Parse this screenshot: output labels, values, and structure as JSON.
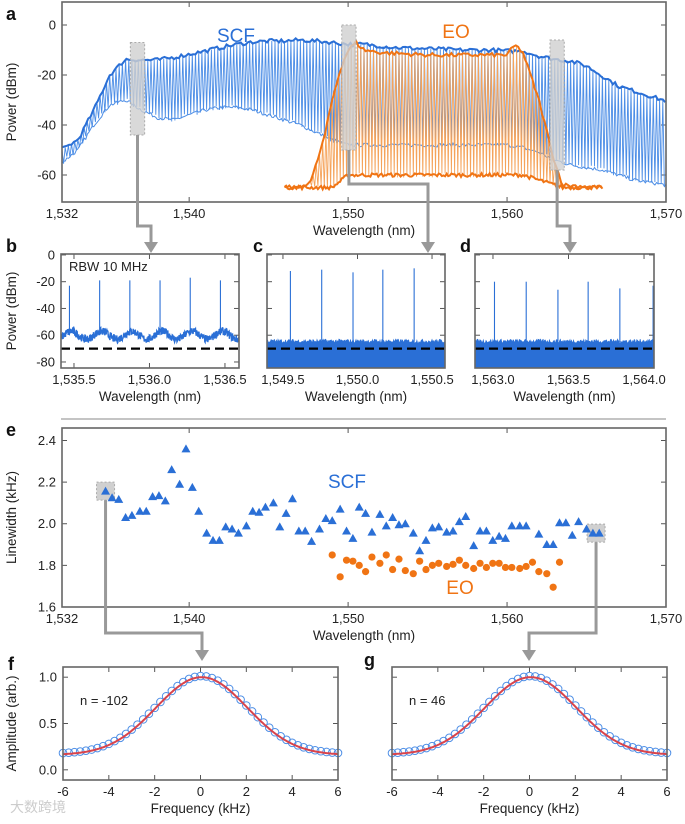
{
  "watermark": "大数跨境",
  "colors": {
    "scf": "#2a6fd6",
    "scf_light": "#4d8ee6",
    "eo": "#f07414",
    "eo_light": "#f5a35a",
    "fit": "#d9434b",
    "highlight": "#d0d0d0",
    "arrow": "#999999"
  },
  "chart_data": [
    {
      "panel": "a",
      "type": "line",
      "xlabel": "Wavelength (nm)",
      "ylabel": "Power (dBm)",
      "xlim": [
        1532,
        1570
      ],
      "ylim": [
        -70.8,
        9.2
      ],
      "xticks": [
        1532,
        1540,
        1550,
        1560,
        1570
      ],
      "xtick_labels": [
        "1,532",
        "1,540",
        "1,550",
        "1,560",
        "1,570"
      ],
      "yticks": [
        0,
        -20,
        -40,
        -60
      ],
      "ytick_labels": [
        "0",
        "-20",
        "-40",
        "-60"
      ],
      "series": [
        {
          "name": "SCF",
          "comb_spacing_nm": 0.2,
          "upper": {
            "x": [
              1532,
              1533,
              1534,
              1535,
              1536,
              1537,
              1538,
              1539,
              1540,
              1541,
              1542,
              1543,
              1544,
              1545,
              1546,
              1547,
              1548,
              1549,
              1550,
              1551,
              1552,
              1553,
              1554,
              1555,
              1556,
              1557,
              1558,
              1559,
              1560,
              1561,
              1562,
              1563,
              1564,
              1565,
              1566,
              1567,
              1568,
              1569,
              1570
            ],
            "y": [
              -49.7,
              -46,
              -34,
              -20,
              -13.7,
              -14,
              -14,
              -13,
              -11.7,
              -10.4,
              -9,
              -7.7,
              -6.8,
              -6.4,
              -6.4,
              -6,
              -6.4,
              -7,
              -7.7,
              -7.7,
              -8.4,
              -9,
              -9.3,
              -9.5,
              -9.7,
              -10,
              -10,
              -10,
              -10.4,
              -10.4,
              -12.4,
              -13.7,
              -14.4,
              -16.4,
              -20.4,
              -24.4,
              -26.4,
              -28.4,
              -30.4
            ]
          },
          "lower": {
            "x": [
              1532,
              1533,
              1534,
              1535,
              1536,
              1537,
              1538,
              1539,
              1540,
              1541,
              1542,
              1543,
              1544,
              1545,
              1546,
              1547,
              1548,
              1549,
              1550,
              1551,
              1560,
              1561,
              1562,
              1563,
              1564,
              1565,
              1566,
              1567,
              1568,
              1569,
              1570
            ],
            "y": [
              -55,
              -50,
              -40,
              -32,
              -30,
              -34,
              -37,
              -38,
              -36,
              -34,
              -33,
              -33,
              -34,
              -36,
              -38,
              -40,
              -43,
              -46,
              -48,
              -48,
              -48,
              -49,
              -51,
              -54,
              -56,
              -57,
              -58,
              -60,
              -62,
              -63,
              -64
            ]
          }
        },
        {
          "name": "EO",
          "comb_spacing_nm": 0.2,
          "upper": {
            "x": [
              1546,
              1547,
              1547.7,
              1548.5,
              1549,
              1549.5,
              1550,
              1550.5,
              1551,
              1552,
              1555,
              1558,
              1560,
              1560.5,
              1561,
              1562,
              1563,
              1563.5,
              1566
            ],
            "y": [
              -65,
              -65,
              -62,
              -45,
              -30,
              -18,
              -10,
              -7,
              -10,
              -11,
              -12,
              -12,
              -12,
              -8,
              -11,
              -30,
              -55,
              -64,
              -65
            ]
          },
          "lower": {
            "x": [
              1546,
              1549,
              1550,
              1561,
              1562,
              1563.5,
              1566
            ],
            "y": [
              -65,
              -65,
              -60,
              -60,
              -62,
              -65,
              -65
            ]
          }
        }
      ],
      "highlights": [
        {
          "x": [
            1536.3,
            1537.2
          ],
          "y": [
            -7,
            -44
          ]
        },
        {
          "x": [
            1549.6,
            1550.5
          ],
          "y": [
            0,
            -50
          ]
        },
        {
          "x": [
            1562.7,
            1563.6
          ],
          "y": [
            -6,
            -58
          ]
        }
      ]
    },
    {
      "panel": "b",
      "type": "line",
      "annotation": "RBW 10 MHz",
      "xlabel": "Wavelength (nm)",
      "ylabel": "Power (dBm)",
      "xlim": [
        1535.414,
        1536.593
      ],
      "ylim": [
        -84.5,
        0.7
      ],
      "xticks": [
        1535.5,
        1536.0,
        1536.5
      ],
      "xtick_labels": [
        "1,535.5",
        "1,536.0",
        "1,536.5"
      ],
      "yticks": [
        0,
        -20,
        -40,
        -60,
        -80
      ],
      "ytick_labels": [
        "0",
        "-20",
        "-40",
        "-60",
        "-80"
      ],
      "peaks": {
        "x": [
          1535.47,
          1535.67,
          1535.87,
          1536.07,
          1536.27,
          1536.47
        ],
        "y": [
          -23,
          -19,
          -19,
          -19,
          -17,
          -19
        ]
      },
      "noise": {
        "style": "trace",
        "level": -60,
        "ripple": 3,
        "jitter": 3
      },
      "reference_level": -70
    },
    {
      "panel": "c",
      "type": "line",
      "xlabel": "Wavelength (nm)",
      "xlim": [
        1549.393,
        1550.587
      ],
      "ylim": [
        -84.5,
        0.7
      ],
      "xticks": [
        1549.5,
        1550.0,
        1550.5
      ],
      "xtick_labels": [
        "1,549.5",
        "1,550.0",
        "1,550.5"
      ],
      "yticks": [
        0,
        -20,
        -40,
        -60,
        -80
      ],
      "peaks": {
        "x": [
          1549.55,
          1549.76,
          1549.97,
          1550.17,
          1550.38
        ],
        "y": [
          -12,
          -11,
          -13,
          -11,
          -10
        ]
      },
      "noise": {
        "style": "filled",
        "level": -65,
        "ripple": 0,
        "jitter": 1.5
      },
      "reference_level": -70
    },
    {
      "panel": "d",
      "type": "line",
      "xlabel": "Wavelength (nm)",
      "xlim": [
        1562.881,
        1564.066
      ],
      "ylim": [
        -84.5,
        0.7
      ],
      "xticks": [
        1563.0,
        1563.5,
        1564.0
      ],
      "xtick_labels": [
        "1,563.0",
        "1,563.5",
        "1,564.0"
      ],
      "yticks": [
        0,
        -20,
        -40,
        -60,
        -80
      ],
      "peaks": {
        "x": [
          1563.01,
          1563.22,
          1563.43,
          1563.63,
          1563.84,
          1564.06
        ],
        "y": [
          -20,
          -20,
          -26,
          -20,
          -25,
          -23
        ]
      },
      "noise": {
        "style": "filled",
        "level": -65,
        "ripple": 0,
        "jitter": 1.5
      },
      "reference_level": -70
    },
    {
      "panel": "e",
      "type": "scatter",
      "xlabel": "Wavelength (nm)",
      "ylabel": "Linewidth (kHz)",
      "xlim": [
        1532,
        1570
      ],
      "ylim": [
        1.6,
        2.46
      ],
      "xticks": [
        1532,
        1540,
        1550,
        1560,
        1570
      ],
      "xtick_labels": [
        "1,532",
        "1,540",
        "1,550",
        "1,560",
        "1,570"
      ],
      "yticks": [
        1.6,
        1.8,
        2.0,
        2.2,
        2.4
      ],
      "ytick_labels": [
        "1.6",
        "1.8",
        "2.0",
        "2.2",
        "2.4"
      ],
      "series": [
        {
          "name": "SCF",
          "marker": "triangle",
          "x": [
            1534.74,
            1535.15,
            1535.57,
            1536.0,
            1536.4,
            1536.9,
            1537.3,
            1537.7,
            1538.1,
            1538.5,
            1538.9,
            1539.4,
            1539.8,
            1540.2,
            1540.6,
            1541.1,
            1541.5,
            1541.9,
            1542.3,
            1542.7,
            1543.1,
            1543.6,
            1544.0,
            1544.4,
            1544.8,
            1545.3,
            1545.7,
            1546.1,
            1546.5,
            1546.9,
            1547.3,
            1547.7,
            1548.2,
            1548.6,
            1549.0,
            1549.5,
            1549.9,
            1550.3,
            1550.7,
            1551.1,
            1551.5,
            1552.0,
            1552.4,
            1552.8,
            1553.2,
            1553.6,
            1554.1,
            1554.5,
            1554.9,
            1555.3,
            1555.7,
            1556.2,
            1556.6,
            1557.0,
            1557.4,
            1557.9,
            1558.3,
            1558.7,
            1559.1,
            1559.5,
            1559.9,
            1560.3,
            1560.8,
            1561.2,
            1562.0,
            1562.5,
            1562.9,
            1563.3,
            1563.7,
            1564.1,
            1564.5,
            1565.0,
            1565.4,
            1565.8
          ],
          "y": [
            2.157,
            2.125,
            2.117,
            2.03,
            2.04,
            2.06,
            2.06,
            2.13,
            2.135,
            2.11,
            2.26,
            2.19,
            2.36,
            2.175,
            2.06,
            1.955,
            1.92,
            1.92,
            1.985,
            1.975,
            1.955,
            1.99,
            2.06,
            2.055,
            2.08,
            2.1,
            1.985,
            2.05,
            2.12,
            1.965,
            1.965,
            1.915,
            1.975,
            2.025,
            2.015,
            2.07,
            1.965,
            1.93,
            2.08,
            2.05,
            1.96,
            2.045,
            1.99,
            2.03,
            1.995,
            2.0,
            1.955,
            1.87,
            1.92,
            1.98,
            1.985,
            1.96,
            1.965,
            2.01,
            2.035,
            1.895,
            1.965,
            1.965,
            1.92,
            1.94,
            1.93,
            1.99,
            1.99,
            1.99,
            1.95,
            1.9,
            1.9,
            2.005,
            2.005,
            1.945,
            2.01,
            1.975,
            1.955,
            1.955
          ]
        },
        {
          "name": "EO",
          "marker": "circle",
          "x": [
            1549.0,
            1549.5,
            1549.9,
            1550.3,
            1550.7,
            1551.1,
            1551.5,
            1552.0,
            1552.4,
            1552.8,
            1553.2,
            1553.6,
            1554.1,
            1554.5,
            1554.9,
            1555.3,
            1555.7,
            1556.2,
            1556.6,
            1557.0,
            1557.4,
            1557.9,
            1558.3,
            1558.7,
            1559.1,
            1559.5,
            1559.9,
            1560.3,
            1560.8,
            1561.2,
            1561.6,
            1562.0,
            1562.5,
            1562.9,
            1563.3
          ],
          "y": [
            1.85,
            1.745,
            1.825,
            1.82,
            1.8,
            1.77,
            1.84,
            1.81,
            1.85,
            1.78,
            1.83,
            1.775,
            1.76,
            1.82,
            1.78,
            1.8,
            1.81,
            1.795,
            1.805,
            1.825,
            1.8,
            1.785,
            1.81,
            1.79,
            1.81,
            1.81,
            1.79,
            1.79,
            1.785,
            1.795,
            1.815,
            1.77,
            1.76,
            1.695,
            1.815
          ]
        }
      ],
      "highlights": [
        {
          "x": 1534.74,
          "y": 2.157
        },
        {
          "x": 1565.6,
          "y": 1.955
        }
      ]
    },
    {
      "panel": "f",
      "type": "line",
      "annotation": "n = -102",
      "xlabel": "Frequency (kHz)",
      "ylabel": "Amplitude (arb.)",
      "xlim": [
        -6,
        6
      ],
      "ylim": [
        -0.11,
        1.11
      ],
      "xticks": [
        -6,
        -4,
        -2,
        0,
        2,
        4,
        6
      ],
      "xtick_labels": [
        "-6",
        "-4",
        "-2",
        "0",
        "2",
        "4",
        "6"
      ],
      "yticks": [
        0,
        0.5,
        1.0
      ],
      "ytick_labels": [
        "0.0",
        "0.5",
        "1.0"
      ],
      "measured": {
        "x_start": -6,
        "x_end": 6,
        "x_step": 0.25
      },
      "fit": {
        "center": 0.05,
        "sigma": 2.0,
        "offset": 0.16,
        "amplitude": 0.84
      }
    },
    {
      "panel": "g",
      "type": "line",
      "annotation": "n = 46",
      "xlabel": "Frequency (kHz)",
      "xlim": [
        -6,
        6
      ],
      "ylim": [
        -0.11,
        1.11
      ],
      "xticks": [
        -6,
        -4,
        -2,
        0,
        2,
        4,
        6
      ],
      "xtick_labels": [
        "-6",
        "-4",
        "-2",
        "0",
        "2",
        "4",
        "6"
      ],
      "yticks": [
        0,
        0.5,
        1.0
      ],
      "measured": {
        "x_start": -6,
        "x_end": 6,
        "x_step": 0.25
      },
      "fit": {
        "center": 0.05,
        "sigma": 2.0,
        "offset": 0.16,
        "amplitude": 0.84
      }
    }
  ]
}
